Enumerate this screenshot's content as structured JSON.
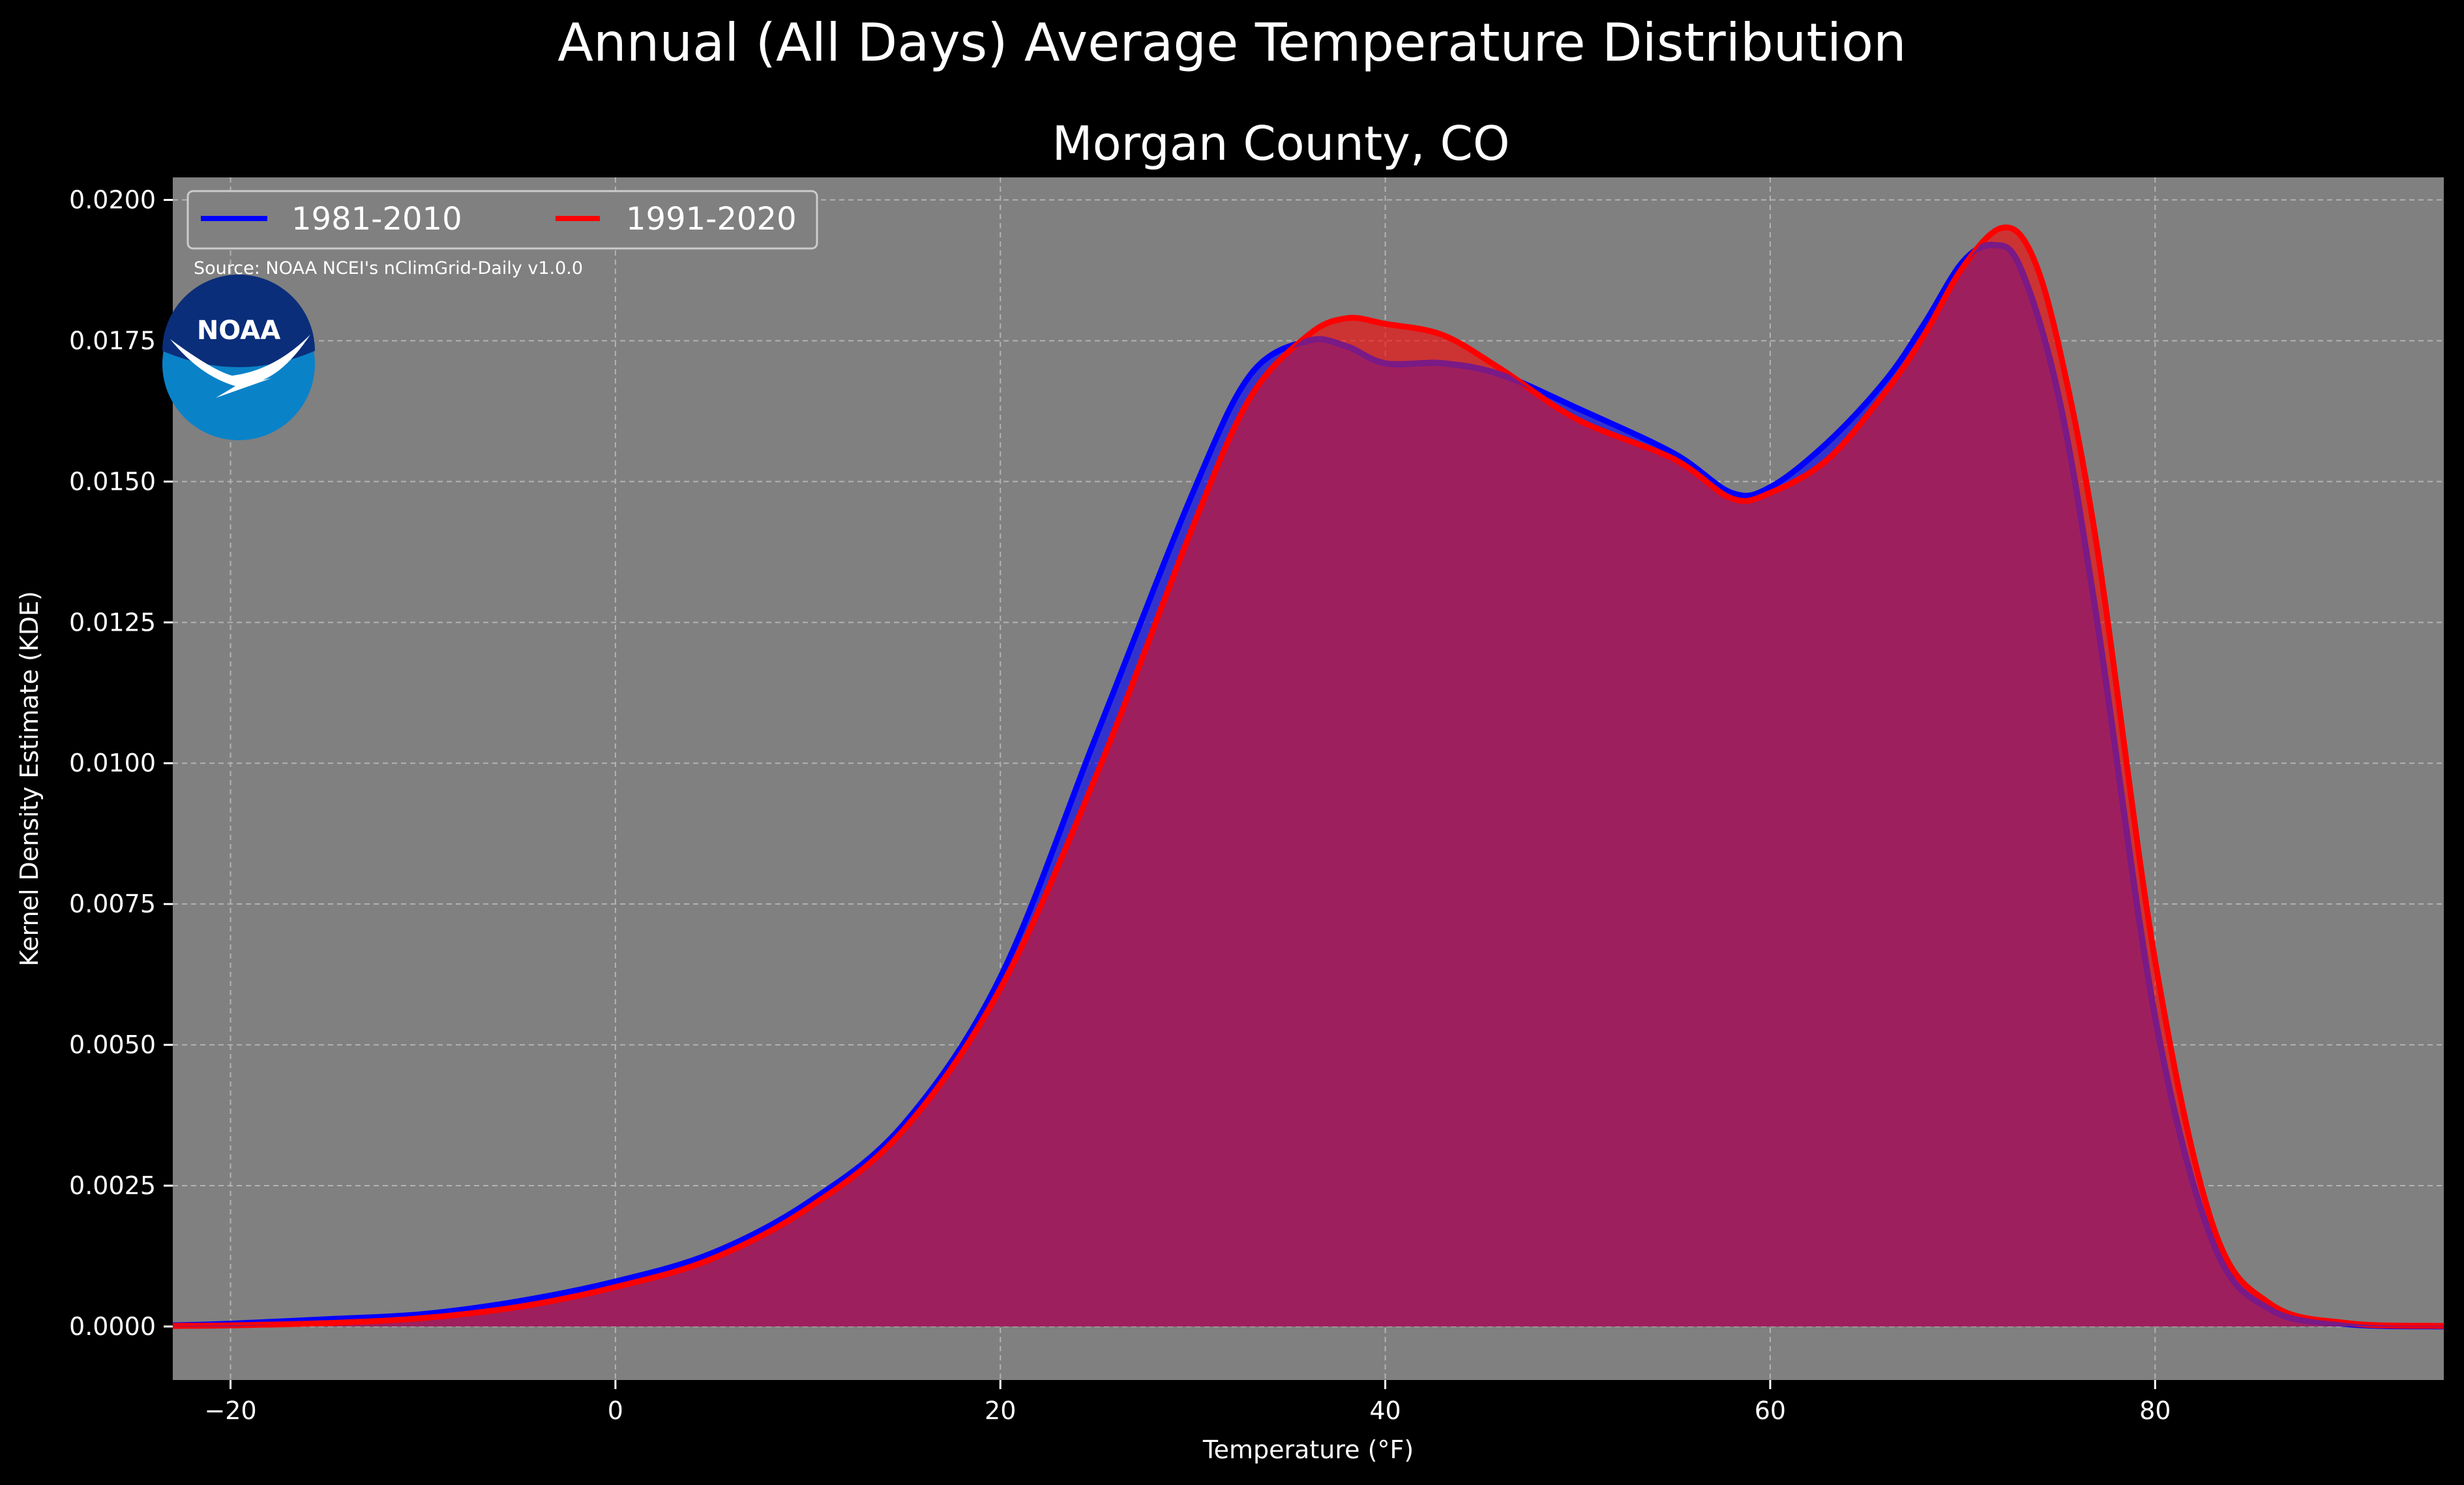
{
  "chart_data": {
    "type": "area",
    "title": "Annual (All Days) Average Temperature Distribution",
    "subtitle": "Morgan County, CO",
    "xlabel": "Temperature (°F)",
    "ylabel": "Kernel Density Estimate (KDE)",
    "xlim": [
      -23,
      95
    ],
    "ylim": [
      -0.00095,
      0.0204
    ],
    "x_ticks": [
      -20,
      0,
      20,
      40,
      60,
      80
    ],
    "x_tick_labels": [
      "−20",
      "0",
      "20",
      "40",
      "60",
      "80"
    ],
    "y_ticks": [
      0.0,
      0.0025,
      0.005,
      0.0075,
      0.01,
      0.0125,
      0.015,
      0.0175,
      0.02
    ],
    "y_tick_labels": [
      "0.0000",
      "0.0025",
      "0.0050",
      "0.0075",
      "0.0100",
      "0.0125",
      "0.0150",
      "0.0175",
      "0.0200"
    ],
    "grid": true,
    "legend_position": "top-left",
    "annotation": "Source: NOAA NCEI's nClimGrid-Daily v1.0.0",
    "logo_text": "NOAA",
    "colors": {
      "background": "#000000",
      "plot_background": "#808080",
      "series_1": "#0000ff",
      "series_2": "#ff0000",
      "overlap_fill": "#9e1f5e"
    },
    "series": [
      {
        "name": "1981-2010",
        "color": "#0000ff",
        "x": [
          -23,
          -20,
          -15,
          -10,
          -5,
          0,
          5,
          10,
          15,
          20,
          25,
          30,
          33,
          36,
          38,
          40,
          43,
          46,
          50,
          55,
          58,
          60,
          63,
          66,
          68,
          70,
          71.6,
          73,
          75,
          77,
          80,
          83,
          86,
          90,
          95
        ],
        "y": [
          2e-05,
          5e-05,
          0.00013,
          0.00022,
          0.00045,
          0.0008,
          0.0013,
          0.0022,
          0.0036,
          0.0062,
          0.0105,
          0.0148,
          0.0169,
          0.0175,
          0.0174,
          0.0171,
          0.0171,
          0.0169,
          0.0163,
          0.0155,
          0.0148,
          0.0149,
          0.0157,
          0.0168,
          0.0178,
          0.0189,
          0.0192,
          0.0188,
          0.0165,
          0.0125,
          0.0055,
          0.0015,
          0.0003,
          4e-05,
          0.0
        ]
      },
      {
        "name": "1991-2020",
        "color": "#ff0000",
        "x": [
          -23,
          -20,
          -15,
          -10,
          -5,
          0,
          5,
          10,
          15,
          20,
          25,
          30,
          33,
          36,
          38,
          40,
          43,
          46,
          50,
          55,
          58,
          60,
          63,
          66,
          68,
          70,
          72,
          73.5,
          75,
          77,
          80,
          83,
          86,
          90,
          95
        ],
        "y": [
          1e-05,
          2e-05,
          6e-05,
          0.00015,
          0.00035,
          0.0007,
          0.0012,
          0.0021,
          0.0035,
          0.006,
          0.0098,
          0.0142,
          0.0165,
          0.0176,
          0.0179,
          0.0178,
          0.0176,
          0.017,
          0.0161,
          0.0154,
          0.0147,
          0.0148,
          0.0154,
          0.0166,
          0.0176,
          0.0188,
          0.0195,
          0.0191,
          0.0174,
          0.0138,
          0.0065,
          0.0018,
          0.0004,
          6e-05,
          1e-05
        ]
      }
    ]
  }
}
